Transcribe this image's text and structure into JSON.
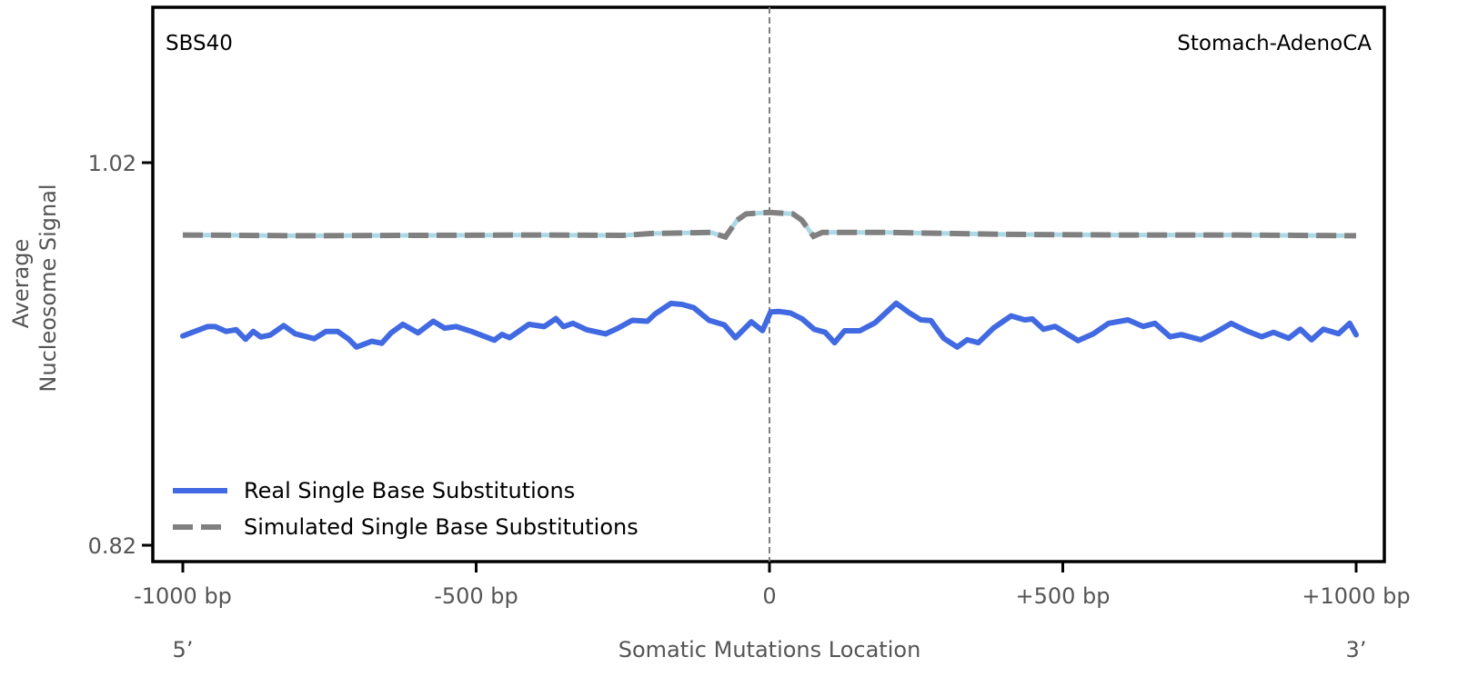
{
  "chart_data": {
    "type": "line",
    "title_left": "SBS40",
    "title_right": "Stomach-AdenoCA",
    "xlabel": "Somatic Mutations Location",
    "ylabel_lines": [
      "Average",
      "Nucleosome Signal"
    ],
    "x_end_labels": {
      "left": "5’",
      "right": "3’"
    },
    "xlim": [
      -1000,
      1000
    ],
    "ylim_ticks": [
      0.82,
      1.02
    ],
    "xticks": [
      -1000,
      -500,
      0,
      500,
      1000
    ],
    "xtick_labels": [
      "-1000 bp",
      "-500 bp",
      "0",
      "+500 bp",
      "+1000 bp"
    ],
    "yticks": [
      0.82,
      1.02
    ],
    "ytick_labels": [
      "0.82",
      "1.02"
    ],
    "vline_x": 0,
    "legend_position": "bottom-left",
    "colors": {
      "real": "#4169e1",
      "simulated": "#808080",
      "simulated_band": "#add8e6",
      "vline": "#808080"
    },
    "series": [
      {
        "name": "Real Single Base Substitutions",
        "style": "solid",
        "x": [
          -1000,
          -958,
          -945,
          -926,
          -909,
          -893,
          -880,
          -867,
          -851,
          -828,
          -808,
          -776,
          -756,
          -736,
          -717,
          -704,
          -678,
          -661,
          -645,
          -625,
          -599,
          -573,
          -554,
          -534,
          -508,
          -469,
          -456,
          -443,
          -410,
          -384,
          -364,
          -351,
          -335,
          -312,
          -279,
          -260,
          -234,
          -208,
          -195,
          -168,
          -149,
          -129,
          -103,
          -77,
          -58,
          -31,
          -12,
          2,
          17,
          36,
          56,
          76,
          95,
          111,
          128,
          154,
          180,
          216,
          239,
          258,
          275,
          297,
          320,
          337,
          356,
          382,
          412,
          435,
          448,
          467,
          487,
          526,
          552,
          578,
          611,
          637,
          657,
          683,
          702,
          735,
          761,
          787,
          813,
          839,
          859,
          885,
          905,
          924,
          944,
          970,
          989,
          1000
        ],
        "y": [
          0.9294,
          0.9343,
          0.9343,
          0.9318,
          0.9327,
          0.9277,
          0.9318,
          0.9289,
          0.9299,
          0.9348,
          0.9305,
          0.928,
          0.9318,
          0.9318,
          0.9277,
          0.9236,
          0.9266,
          0.9256,
          0.931,
          0.9355,
          0.931,
          0.9371,
          0.9335,
          0.9343,
          0.9318,
          0.9272,
          0.9302,
          0.9285,
          0.9355,
          0.9343,
          0.9385,
          0.9343,
          0.936,
          0.9327,
          0.9305,
          0.9332,
          0.9376,
          0.9371,
          0.9409,
          0.9464,
          0.9459,
          0.9442,
          0.9376,
          0.9352,
          0.9285,
          0.9368,
          0.9322,
          0.942,
          0.9422,
          0.9414,
          0.9383,
          0.9329,
          0.9313,
          0.9259,
          0.9321,
          0.9321,
          0.9363,
          0.9465,
          0.9414,
          0.9378,
          0.9375,
          0.9282,
          0.9236,
          0.9274,
          0.9259,
          0.9336,
          0.9399,
          0.9378,
          0.9383,
          0.9329,
          0.9344,
          0.927,
          0.9305,
          0.936,
          0.9378,
          0.9344,
          0.936,
          0.929,
          0.9301,
          0.9274,
          0.9313,
          0.936,
          0.9321,
          0.929,
          0.9313,
          0.9282,
          0.9329,
          0.9274,
          0.9329,
          0.9306,
          0.936,
          0.93
        ]
      },
      {
        "name": "Simulated Single Base Substitutions",
        "style": "dashed",
        "x": [
          -1000,
          -800,
          -600,
          -400,
          -250,
          -200,
          -100,
          -75,
          -55,
          -40,
          0,
          40,
          55,
          75,
          90,
          200,
          400,
          600,
          800,
          1000
        ],
        "y": [
          0.9822,
          0.9818,
          0.982,
          0.9822,
          0.982,
          0.983,
          0.9835,
          0.9812,
          0.99,
          0.9932,
          0.994,
          0.9932,
          0.99,
          0.9815,
          0.9835,
          0.9835,
          0.9825,
          0.9822,
          0.9822,
          0.9818
        ]
      }
    ]
  }
}
